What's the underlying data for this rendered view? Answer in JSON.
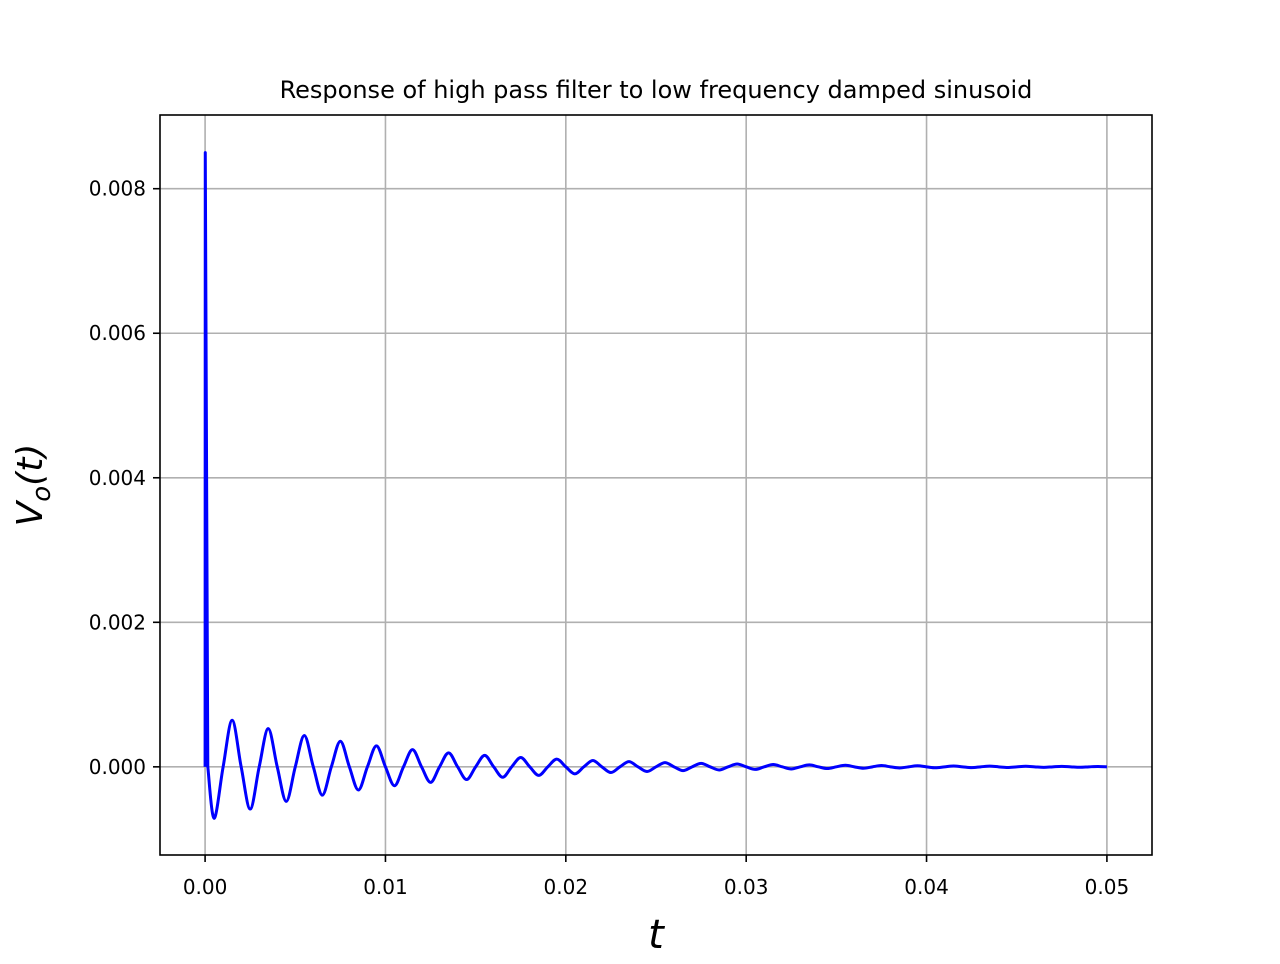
{
  "chart_data": {
    "type": "line",
    "title": "Response of high pass filter to low frequency damped sinusoid",
    "xlabel": "t",
    "ylabel": [
      "V",
      "o",
      "(t)"
    ],
    "color": "#0000ff",
    "grid": true,
    "xlim": [
      -0.0025,
      0.0525
    ],
    "ylim": [
      -0.00122,
      0.00902
    ],
    "xticks": [
      {
        "value": 0,
        "label": "0.00"
      },
      {
        "value": 0.01,
        "label": "0.01"
      },
      {
        "value": 0.02,
        "label": "0.02"
      },
      {
        "value": 0.03,
        "label": "0.03"
      },
      {
        "value": 0.04,
        "label": "0.04"
      },
      {
        "value": 0.05,
        "label": "0.05"
      }
    ],
    "yticks": [
      {
        "value": 0,
        "label": "0.000"
      },
      {
        "value": 0.002,
        "label": "0.002"
      },
      {
        "value": 0.004,
        "label": "0.004"
      },
      {
        "value": 0.006,
        "label": "0.006"
      },
      {
        "value": 0.008,
        "label": "0.008"
      }
    ],
    "x": [
      0,
      1e-05,
      0.00015,
      0.0005,
      0.001,
      0.0015,
      0.002,
      0.0025,
      0.003,
      0.0035,
      0.004,
      0.0045,
      0.005,
      0.0055,
      0.006,
      0.0065,
      0.007,
      0.0075,
      0.008,
      0.0085,
      0.009,
      0.0095,
      0.01,
      0.0105,
      0.011,
      0.0115,
      0.012,
      0.0125,
      0.013,
      0.0135,
      0.014,
      0.0145,
      0.015,
      0.0155,
      0.016,
      0.0165,
      0.017,
      0.0175,
      0.018,
      0.0185,
      0.019,
      0.0195,
      0.02,
      0.0205,
      0.021,
      0.0215,
      0.022,
      0.0225,
      0.023,
      0.0235,
      0.024,
      0.0245,
      0.025,
      0.0255,
      0.026,
      0.0265,
      0.027,
      0.0275,
      0.028,
      0.0285,
      0.029,
      0.0295,
      0.03,
      0.0305,
      0.031,
      0.0315,
      0.032,
      0.0325,
      0.033,
      0.0335,
      0.034,
      0.0345,
      0.035,
      0.0355,
      0.036,
      0.0365,
      0.037,
      0.0375,
      0.038,
      0.0385,
      0.039,
      0.0395,
      0.04,
      0.0405,
      0.041,
      0.0415,
      0.042,
      0.0425,
      0.043,
      0.0435,
      0.044,
      0.0445,
      0.045,
      0.0455,
      0.046,
      0.0465,
      0.047,
      0.0475,
      0.048,
      0.0485,
      0.049,
      0.0495,
      0.05
    ],
    "values": [
      0,
      0.0085,
      0,
      -0.000713,
      0,
      0.000645,
      0,
      -0.000584,
      0,
      0.000528,
      0,
      -0.000478,
      0,
      0.000433,
      0,
      -0.000392,
      0,
      0.000354,
      0,
      -0.000321,
      0,
      0.00029,
      0,
      -0.000262,
      0,
      0.000238,
      0,
      -0.000215,
      0,
      0.000194,
      0,
      -0.000176,
      0,
      0.000159,
      0,
      -0.000144,
      0,
      0.00013,
      0,
      -0.000118,
      0,
      0.000107,
      0,
      -9.66e-05,
      0,
      8.74e-05,
      0,
      -7.91e-05,
      0,
      7.16e-05,
      0,
      -6.48e-05,
      0,
      5.86e-05,
      0,
      -5.3e-05,
      0,
      4.8e-05,
      0,
      -4.34e-05,
      0,
      3.93e-05,
      0,
      -3.56e-05,
      0,
      3.22e-05,
      0,
      -2.91e-05,
      0,
      2.63e-05,
      0,
      -2.38e-05,
      0,
      2.16e-05,
      0,
      -1.95e-05,
      0,
      1.77e-05,
      0,
      -1.6e-05,
      0,
      1.45e-05,
      0,
      -1.31e-05,
      0,
      1.18e-05,
      0,
      -1.07e-05,
      0,
      9.7e-06,
      0,
      -8.8e-06,
      0,
      7.9e-06,
      0,
      -7.2e-06,
      0,
      6.5e-06,
      0,
      -5.9e-06,
      0,
      5.3e-06,
      0
    ]
  }
}
